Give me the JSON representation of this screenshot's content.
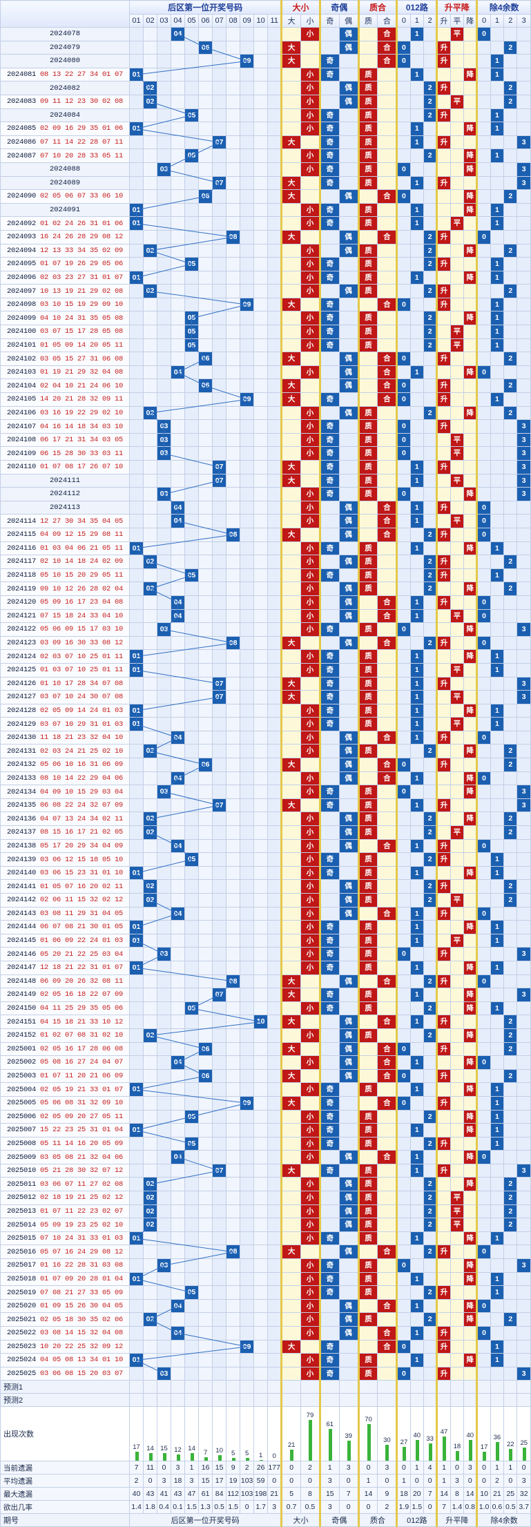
{
  "header": {
    "g1": "后区第一位开奖号码",
    "g2": "大小",
    "g3": "奇偶",
    "g4": "质合",
    "g5": "012路",
    "g6": "升平降",
    "g7": "除4余数",
    "cols": [
      "01",
      "02",
      "03",
      "04",
      "05",
      "06",
      "07",
      "08",
      "09",
      "10",
      "11",
      "大",
      "小",
      "奇",
      "偶",
      "质",
      "合",
      "0",
      "1",
      "2",
      "升",
      "平",
      "降",
      "0",
      "1",
      "2",
      "3"
    ]
  },
  "labels": {
    "big": "大",
    "small": "小",
    "odd": "奇",
    "even": "偶",
    "prime": "质",
    "comp": "合",
    "up": "升",
    "flat": "平",
    "down": "降",
    "issue": "期号"
  },
  "rows": [
    {
      "issue": "2024078",
      "draw": "",
      "v": "04"
    },
    {
      "issue": "2024079",
      "draw": "",
      "v": "06"
    },
    {
      "issue": "2024080",
      "draw": "",
      "v": "09"
    },
    {
      "issue": "2024081",
      "draw": "08 13 22 27 34 01 07",
      "v": "01"
    },
    {
      "issue": "2024082",
      "draw": "",
      "v": "02"
    },
    {
      "issue": "2024083",
      "draw": "09 11 12 23 30 02 08",
      "v": "02"
    },
    {
      "issue": "2024084",
      "draw": "",
      "v": "05"
    },
    {
      "issue": "2024085",
      "draw": "02 09 16 29 35 01 06",
      "v": "01"
    },
    {
      "issue": "2024086",
      "draw": "07 11 14 22 28 07 11",
      "v": "07"
    },
    {
      "issue": "2024087",
      "draw": "07 10 20 28 33 05 11",
      "v": "05"
    },
    {
      "issue": "2024088",
      "draw": "",
      "v": "03"
    },
    {
      "issue": "2024089",
      "draw": "",
      "v": "07"
    },
    {
      "issue": "2024090",
      "draw": "02 05 06 07 33 06 10",
      "v": "06"
    },
    {
      "issue": "2024091",
      "draw": "",
      "v": "01"
    },
    {
      "issue": "2024092",
      "draw": "01 02 24 26 31 01 06",
      "v": "01"
    },
    {
      "issue": "2024093",
      "draw": "16 24 26 28 29 08 12",
      "v": "08"
    },
    {
      "issue": "2024094",
      "draw": "12 13 33 34 35 02 09",
      "v": "02"
    },
    {
      "issue": "2024095",
      "draw": "01 07 19 26 29 05 06",
      "v": "05"
    },
    {
      "issue": "2024096",
      "draw": "02 03 23 27 31 01 07",
      "v": "01"
    },
    {
      "issue": "2024097",
      "draw": "10 13 19 21 29 02 08",
      "v": "02"
    },
    {
      "issue": "2024098",
      "draw": "03 10 15 19 29 09 10",
      "v": "09"
    },
    {
      "issue": "2024099",
      "draw": "04 10 24 31 35 05 08",
      "v": "05"
    },
    {
      "issue": "2024100",
      "draw": "03 07 15 17 28 05 08",
      "v": "05"
    },
    {
      "issue": "2024101",
      "draw": "01 05 09 14 20 05 11",
      "v": "05"
    },
    {
      "issue": "2024102",
      "draw": "03 05 15 27 31 06 08",
      "v": "06"
    },
    {
      "issue": "2024103",
      "draw": "01 19 21 29 32 04 08",
      "v": "04"
    },
    {
      "issue": "2024104",
      "draw": "02 04 10 21 24 06 10",
      "v": "06"
    },
    {
      "issue": "2024105",
      "draw": "14 20 21 28 32 09 11",
      "v": "09"
    },
    {
      "issue": "2024106",
      "draw": "03 16 19 22 29 02 10",
      "v": "02"
    },
    {
      "issue": "2024107",
      "draw": "04 16 14 18 34 03 10",
      "v": "03"
    },
    {
      "issue": "2024108",
      "draw": "06 17 21 31 34 03 05",
      "v": "03"
    },
    {
      "issue": "2024109",
      "draw": "06 15 28 30 33 03 11",
      "v": "03"
    },
    {
      "issue": "2024110",
      "draw": "01 07 08 17 26 07 10",
      "v": "07"
    },
    {
      "issue": "2024111",
      "draw": "",
      "v": "07"
    },
    {
      "issue": "2024112",
      "draw": "",
      "v": "03"
    },
    {
      "issue": "2024113",
      "draw": "",
      "v": "04"
    },
    {
      "issue": "2024114",
      "draw": "12 27 30 34 35 04 05",
      "v": "04"
    },
    {
      "issue": "2024115",
      "draw": "04 09 12 15 29 08 11",
      "v": "08"
    },
    {
      "issue": "2024116",
      "draw": "01 03 04 06 21 05 11",
      "v": "01"
    },
    {
      "issue": "2024117",
      "draw": "02 10 14 18 24 02 09",
      "v": "02"
    },
    {
      "issue": "2024118",
      "draw": "05 10 15 20 29 05 11",
      "v": "05"
    },
    {
      "issue": "2024119",
      "draw": "09 10 12 26 28 02 04",
      "v": "02"
    },
    {
      "issue": "2024120",
      "draw": "05 09 16 17 23 04 08",
      "v": "04"
    },
    {
      "issue": "2024121",
      "draw": "07 15 18 24 33 04 10",
      "v": "04"
    },
    {
      "issue": "2024122",
      "draw": "05 06 09 15 17 03 10",
      "v": "03"
    },
    {
      "issue": "2024123",
      "draw": "03 09 16 30 33 08 12",
      "v": "08"
    },
    {
      "issue": "2024124",
      "draw": "02 03 07 10 25 01 11",
      "v": "01"
    },
    {
      "issue": "2024125",
      "draw": "01 03 07 10 25 01 11",
      "v": "01"
    },
    {
      "issue": "2024126",
      "draw": "01 10 17 28 34 07 08",
      "v": "07"
    },
    {
      "issue": "2024127",
      "draw": "03 07 10 24 30 07 08",
      "v": "07"
    },
    {
      "issue": "2024128",
      "draw": "02 05 09 14 24 01 03",
      "v": "01"
    },
    {
      "issue": "2024129",
      "draw": "03 07 10 29 31 01 03",
      "v": "01"
    },
    {
      "issue": "2024130",
      "draw": "11 18 21 23 32 04 10",
      "v": "04"
    },
    {
      "issue": "2024131",
      "draw": "02 03 24 21 25 02 10",
      "v": "02"
    },
    {
      "issue": "2024132",
      "draw": "05 06 10 16 31 06 09",
      "v": "06"
    },
    {
      "issue": "2024133",
      "draw": "08 10 14 22 29 04 06",
      "v": "04"
    },
    {
      "issue": "2024134",
      "draw": "04 09 10 15 29 03 04",
      "v": "03"
    },
    {
      "issue": "2024135",
      "draw": "06 08 22 24 32 07 09",
      "v": "07"
    },
    {
      "issue": "2024136",
      "draw": "04 07 13 24 34 02 11",
      "v": "02"
    },
    {
      "issue": "2024137",
      "draw": "08 15 16 17 21 02 05",
      "v": "02"
    },
    {
      "issue": "2024138",
      "draw": "05 17 20 29 34 04 09",
      "v": "04"
    },
    {
      "issue": "2024139",
      "draw": "03 06 12 15 18 05 10",
      "v": "05"
    },
    {
      "issue": "2024140",
      "draw": "03 06 15 23 31 01 10",
      "v": "01"
    },
    {
      "issue": "2024141",
      "draw": "01 05 07 16 20 02 11",
      "v": "02"
    },
    {
      "issue": "2024142",
      "draw": "02 06 11 15 32 02 12",
      "v": "02"
    },
    {
      "issue": "2024143",
      "draw": "03 08 11 29 31 04 05",
      "v": "04"
    },
    {
      "issue": "2024144",
      "draw": "06 07 08 21 30 01 05",
      "v": "01"
    },
    {
      "issue": "2024145",
      "draw": "01 06 09 22 24 01 03",
      "v": "01"
    },
    {
      "issue": "2024146",
      "draw": "05 20 21 22 25 03 04",
      "v": "03"
    },
    {
      "issue": "2024147",
      "draw": "12 18 21 22 31 01 07",
      "v": "01"
    },
    {
      "issue": "2024148",
      "draw": "06 09 20 26 32 08 11",
      "v": "08"
    },
    {
      "issue": "2024149",
      "draw": "02 05 16 18 22 07 09",
      "v": "07"
    },
    {
      "issue": "2024150",
      "draw": "04 11 25 29 35 05 06",
      "v": "05"
    },
    {
      "issue": "2024151",
      "draw": "04 15 18 21 33 10 12",
      "v": "10"
    },
    {
      "issue": "2024152",
      "draw": "01 02 07 08 31 02 10",
      "v": "02"
    },
    {
      "issue": "2025001",
      "draw": "02 05 16 17 28 06 08",
      "v": "06"
    },
    {
      "issue": "2025002",
      "draw": "05 08 16 27 24 04 07",
      "v": "04"
    },
    {
      "issue": "2025003",
      "draw": "01 07 11 20 21 06 09",
      "v": "06"
    },
    {
      "issue": "2025004",
      "draw": "02 05 19 21 33 01 07",
      "v": "01"
    },
    {
      "issue": "2025005",
      "draw": "05 06 08 31 32 09 10",
      "v": "09"
    },
    {
      "issue": "2025006",
      "draw": "02 05 09 20 27 05 11",
      "v": "05"
    },
    {
      "issue": "2025007",
      "draw": "15 22 23 25 31 01 04",
      "v": "01"
    },
    {
      "issue": "2025008",
      "draw": "05 11 14 16 20 05 09",
      "v": "05"
    },
    {
      "issue": "2025009",
      "draw": "03 05 08 21 32 04 06",
      "v": "04"
    },
    {
      "issue": "2025010",
      "draw": "05 21 28 30 32 07 12",
      "v": "07"
    },
    {
      "issue": "2025011",
      "draw": "03 06 07 11 27 02 08",
      "v": "02"
    },
    {
      "issue": "2025012",
      "draw": "02 18 19 21 25 02 12",
      "v": "02"
    },
    {
      "issue": "2025013",
      "draw": "01 07 11 22 23 02 07",
      "v": "02"
    },
    {
      "issue": "2025014",
      "draw": "05 09 19 23 25 02 10",
      "v": "02"
    },
    {
      "issue": "2025015",
      "draw": "07 10 24 31 33 01 03",
      "v": "01"
    },
    {
      "issue": "2025016",
      "draw": "05 07 16 24 29 08 12",
      "v": "08"
    },
    {
      "issue": "2025017",
      "draw": "01 16 22 28 31 03 08",
      "v": "03"
    },
    {
      "issue": "2025018",
      "draw": "01 07 09 20 28 01 04",
      "v": "01"
    },
    {
      "issue": "2025019",
      "draw": "07 08 21 27 33 05 09",
      "v": "05"
    },
    {
      "issue": "2025020",
      "draw": "01 09 15 26 30 04 05",
      "v": "04"
    },
    {
      "issue": "2025021",
      "draw": "02 05 18 30 35 02 06",
      "v": "02"
    },
    {
      "issue": "2025022",
      "draw": "03 08 14 15 32 04 08",
      "v": "04"
    },
    {
      "issue": "2025023",
      "draw": "10 20 22 25 32 09 12",
      "v": "09"
    },
    {
      "issue": "2025024",
      "draw": "04 05 08 13 34 01 10",
      "v": "01"
    },
    {
      "issue": "2025025",
      "draw": "03 06 08 15 20 03 07",
      "v": "03"
    }
  ],
  "forecast": [
    "预测1",
    "预测2"
  ],
  "stats": {
    "chart_label": "出现次数",
    "labels": [
      "当前遗漏",
      "平均遗漏",
      "最大遗漏",
      "欲出几率"
    ],
    "current": [
      "7",
      "11",
      "0",
      "3",
      "1",
      "16",
      "15",
      "9",
      "2",
      "26",
      "177",
      "0",
      "2",
      "1",
      "3",
      "0",
      "3",
      "0",
      "1",
      "4",
      "1",
      "0",
      "3",
      "0",
      "1",
      "1",
      "0"
    ],
    "avg": [
      "2",
      "0",
      "3",
      "18",
      "3",
      "15",
      "17",
      "19",
      "103",
      "59",
      "0",
      "0",
      "0",
      "3",
      "0",
      "1",
      "0",
      "1",
      "0",
      "0",
      "1",
      "3",
      "0",
      "0",
      "2",
      "0",
      "3"
    ],
    "max": [
      "40",
      "43",
      "41",
      "43",
      "47",
      "61",
      "84",
      "112",
      "103",
      "198",
      "21",
      "5",
      "8",
      "15",
      "7",
      "14",
      "9",
      "18",
      "20",
      "7",
      "14",
      "8",
      "14",
      "10",
      "21",
      "25",
      "32"
    ],
    "chance": [
      "1.4",
      "1.8",
      "0.4",
      "0.1",
      "1.5",
      "1.3",
      "0.5",
      "1.5",
      "0",
      "1.7",
      "3",
      "0.7",
      "0.5",
      "3",
      "0",
      "0",
      "2",
      "1.9",
      "1.5",
      "0",
      "7",
      "1.4",
      "0.8",
      "1.0",
      "0.6",
      "0.5",
      "3.7"
    ]
  },
  "chart_data": {
    "type": "bar",
    "title": "",
    "categories": [
      "01",
      "02",
      "03",
      "04",
      "05",
      "06",
      "07",
      "08",
      "09",
      "10",
      "11",
      "大",
      "小",
      "奇",
      "偶",
      "质",
      "合",
      "0",
      "1",
      "2",
      "升",
      "平",
      "降",
      "0",
      "1",
      "2",
      "3"
    ],
    "values": [
      17,
      14,
      15,
      12,
      14,
      7,
      10,
      5,
      5,
      1,
      0,
      21,
      79,
      61,
      39,
      70,
      30,
      27,
      40,
      33,
      47,
      18,
      40,
      17,
      36,
      22,
      25
    ],
    "ylim": [
      0,
      85
    ]
  },
  "footer": {
    "issue": "期号",
    "g1": "后区第一位开奖号码",
    "g2": "大小",
    "g3": "奇偶",
    "g4": "质合",
    "g5": "012路",
    "g6": "升平降",
    "g7": "除4余数"
  }
}
